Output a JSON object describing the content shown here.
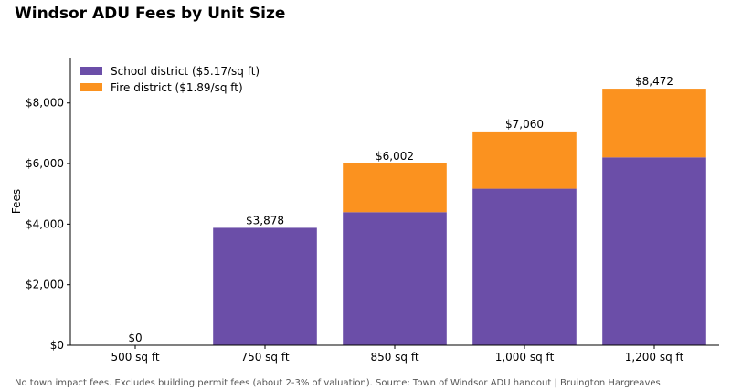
{
  "chart_data": {
    "type": "bar",
    "stacked": true,
    "title": "Windsor ADU Fees by Unit Size",
    "ylabel": "Fees",
    "xlabel": "",
    "categories": [
      "500 sq ft",
      "750 sq ft",
      "850 sq ft",
      "1,000 sq ft",
      "1,200 sq ft"
    ],
    "series": [
      {
        "name": "School district ($5.17/sq ft)",
        "color": "#6b4ea8",
        "values": [
          0,
          3878,
          4395,
          5170,
          6204
        ]
      },
      {
        "name": "Fire district ($1.89/sq ft)",
        "color": "#fb921f",
        "values": [
          0,
          0,
          1607,
          1890,
          2268
        ]
      }
    ],
    "totals_labels": [
      "$0",
      "$3,878",
      "$6,002",
      "$7,060",
      "$8,472"
    ],
    "ylim": [
      0,
      9500
    ],
    "yticks": [
      0,
      2000,
      4000,
      6000,
      8000
    ],
    "ytick_labels": [
      "$0",
      "$2,000",
      "$4,000",
      "$6,000",
      "$8,000"
    ],
    "legend_position": "top-left",
    "grid": false,
    "caption": "No town impact fees. Excludes building permit fees (about 2-3% of valuation). Source: Town of Windsor ADU handout | Bruington Hargreaves"
  }
}
